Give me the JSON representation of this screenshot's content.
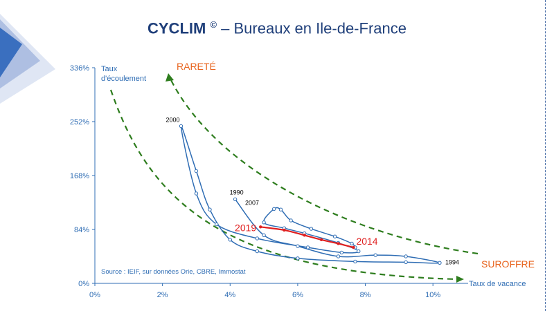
{
  "slide": {
    "title_brand": "CYCLIM",
    "title_mark": "©",
    "title_rest": " – Bureaux en Ile-de-France"
  },
  "colors": {
    "axis": "#2f6db4",
    "curve": "#2f6db4",
    "recent": "#e02020",
    "guide": "#2e7d1e",
    "annot": "#e8641e"
  },
  "chart_data": {
    "type": "line",
    "xlabel": "Taux de vacance",
    "ylabel": [
      "Taux",
      "d'écoulement"
    ],
    "xlim": [
      0,
      0.11
    ],
    "ylim": [
      0,
      3.36
    ],
    "x_ticks": [
      0,
      0.02,
      0.04,
      0.06,
      0.08,
      0.1
    ],
    "x_tick_labels": [
      "0%",
      "2%",
      "4%",
      "6%",
      "8%",
      "10%"
    ],
    "y_ticks": [
      0,
      0.84,
      1.68,
      2.52,
      3.36
    ],
    "y_tick_labels": [
      "0%",
      "84%",
      "168%",
      "252%",
      "336%"
    ],
    "source": "Source : IEIF, sur données Orie, CBRE,  Immostat",
    "annotations": {
      "rarete": "RARETÉ",
      "suroffre": "SUROFFRE"
    },
    "point_labels": [
      {
        "text": "2000",
        "x": 0.0255,
        "y": 2.45
      },
      {
        "text": "1990",
        "x": 0.0415,
        "y": 1.31
      },
      {
        "text": "2007",
        "x": 0.051,
        "y": 1.16
      },
      {
        "text": "1994",
        "x": 0.102,
        "y": 0.32
      },
      {
        "text": "2019",
        "x": 0.049,
        "y": 0.88
      },
      {
        "text": "2014",
        "x": 0.0765,
        "y": 0.56
      }
    ],
    "series": [
      {
        "role": "history",
        "points": [
          [
            0.0415,
            1.31
          ],
          [
            0.05,
            0.75
          ],
          [
            0.06,
            0.58
          ],
          [
            0.072,
            0.42
          ],
          [
            0.083,
            0.44
          ],
          [
            0.092,
            0.42
          ],
          [
            0.102,
            0.32
          ],
          [
            0.092,
            0.33
          ],
          [
            0.077,
            0.34
          ],
          [
            0.06,
            0.39
          ],
          [
            0.048,
            0.5
          ],
          [
            0.04,
            0.68
          ],
          [
            0.034,
            1.15
          ],
          [
            0.03,
            1.75
          ],
          [
            0.0255,
            2.45
          ],
          [
            0.03,
            1.4
          ],
          [
            0.036,
            0.92
          ],
          [
            0.048,
            0.7
          ],
          [
            0.063,
            0.56
          ],
          [
            0.073,
            0.48
          ],
          [
            0.078,
            0.5
          ],
          [
            0.072,
            0.63
          ],
          [
            0.062,
            0.78
          ],
          [
            0.056,
            0.86
          ],
          [
            0.05,
            0.95
          ],
          [
            0.053,
            1.16
          ],
          [
            0.055,
            1.15
          ],
          [
            0.058,
            0.98
          ],
          [
            0.064,
            0.85
          ],
          [
            0.071,
            0.73
          ],
          [
            0.076,
            0.62
          ],
          [
            0.077,
            0.56
          ]
        ]
      },
      {
        "role": "recent",
        "points": [
          [
            0.0765,
            0.56
          ],
          [
            0.072,
            0.62
          ],
          [
            0.067,
            0.68
          ],
          [
            0.062,
            0.75
          ],
          [
            0.056,
            0.83
          ],
          [
            0.049,
            0.88
          ]
        ]
      }
    ]
  }
}
